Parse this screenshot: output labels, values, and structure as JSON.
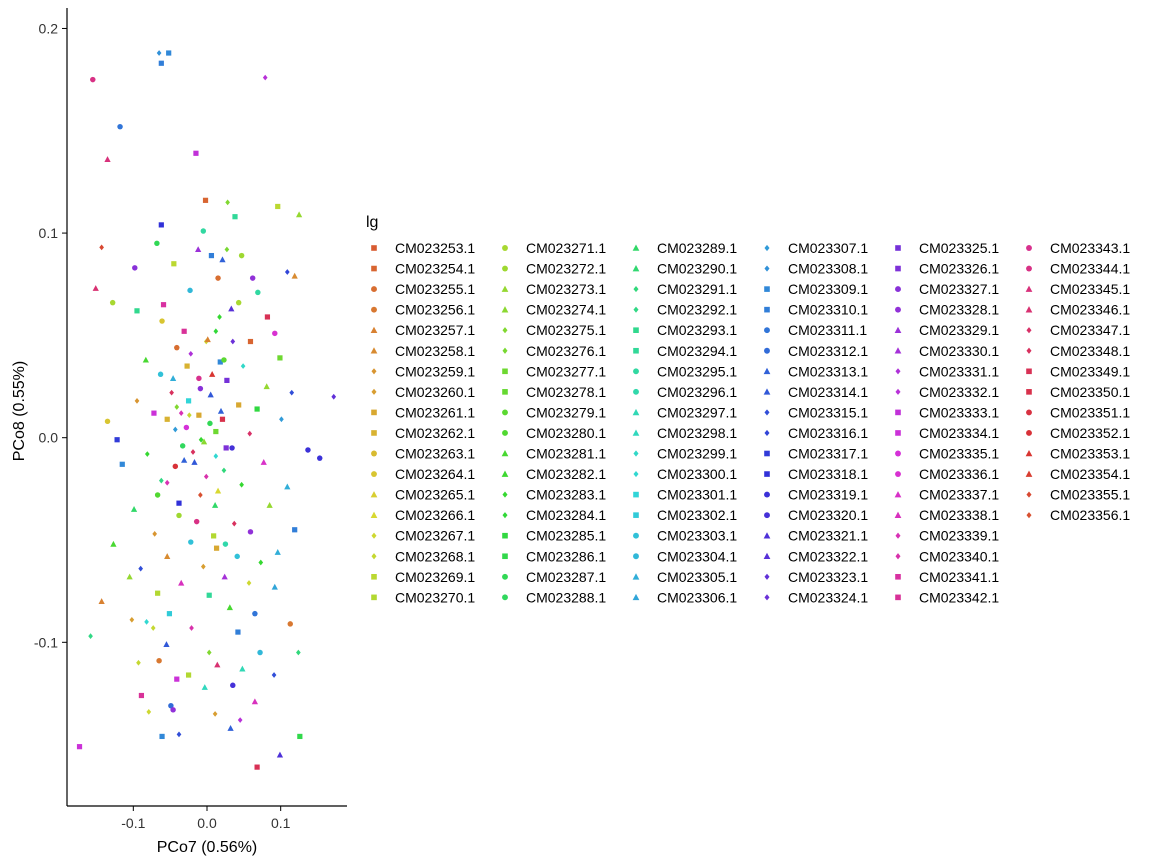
{
  "chart_data": {
    "type": "scatter",
    "title": "",
    "xlabel": "PCo7 (0.56%)",
    "ylabel": "PCo8 (0.55%)",
    "xlim": [
      -0.19,
      0.19
    ],
    "ylim": [
      -0.18,
      0.21
    ],
    "xticks": [
      -0.1,
      0.0,
      0.1
    ],
    "xtick_labels": [
      "-0.1",
      "0.0",
      "0.1"
    ],
    "yticks": [
      -0.1,
      0.0,
      0.1,
      0.2
    ],
    "ytick_labels": [
      "-0.1",
      "0.0",
      "0.1",
      "0.2"
    ],
    "grid": false,
    "legend": {
      "title": "lg",
      "placement": "right",
      "columns": 6,
      "entries": [
        "CM023253.1",
        "CM023254.1",
        "CM023255.1",
        "CM023256.1",
        "CM023257.1",
        "CM023258.1",
        "CM023259.1",
        "CM023260.1",
        "CM023261.1",
        "CM023262.1",
        "CM023263.1",
        "CM023264.1",
        "CM023265.1",
        "CM023266.1",
        "CM023267.1",
        "CM023268.1",
        "CM023269.1",
        "CM023270.1",
        "CM023271.1",
        "CM023272.1",
        "CM023273.1",
        "CM023274.1",
        "CM023275.1",
        "CM023276.1",
        "CM023277.1",
        "CM023278.1",
        "CM023279.1",
        "CM023280.1",
        "CM023281.1",
        "CM023282.1",
        "CM023283.1",
        "CM023284.1",
        "CM023285.1",
        "CM023286.1",
        "CM023287.1",
        "CM023288.1",
        "CM023289.1",
        "CM023290.1",
        "CM023291.1",
        "CM023292.1",
        "CM023293.1",
        "CM023294.1",
        "CM023295.1",
        "CM023296.1",
        "CM023297.1",
        "CM023298.1",
        "CM023299.1",
        "CM023300.1",
        "CM023301.1",
        "CM023302.1",
        "CM023303.1",
        "CM023304.1",
        "CM023305.1",
        "CM023306.1",
        "CM023307.1",
        "CM023308.1",
        "CM023309.1",
        "CM023310.1",
        "CM023311.1",
        "CM023312.1",
        "CM023313.1",
        "CM023314.1",
        "CM023315.1",
        "CM023316.1",
        "CM023317.1",
        "CM023318.1",
        "CM023319.1",
        "CM023320.1",
        "CM023321.1",
        "CM023322.1",
        "CM023323.1",
        "CM023324.1",
        "CM023325.1",
        "CM023326.1",
        "CM023327.1",
        "CM023328.1",
        "CM023329.1",
        "CM023330.1",
        "CM023331.1",
        "CM023332.1",
        "CM023333.1",
        "CM023334.1",
        "CM023335.1",
        "CM023336.1",
        "CM023337.1",
        "CM023338.1",
        "CM023339.1",
        "CM023340.1",
        "CM023341.1",
        "CM023342.1",
        "CM023343.1",
        "CM023344.1",
        "CM023345.1",
        "CM023346.1",
        "CM023347.1",
        "CM023348.1",
        "CM023349.1",
        "CM023350.1",
        "CM023351.1",
        "CM023352.1",
        "CM023353.1",
        "CM023354.1",
        "CM023355.1",
        "CM023356.1"
      ]
    },
    "shapes": [
      "square",
      "circle",
      "triangle",
      "diamond"
    ],
    "series_colors": "hue palette (ggplot2 default), one color per legend entry",
    "points": [
      [
        -0.065,
        0.188,
        55
      ],
      [
        -0.052,
        0.188,
        56
      ],
      [
        -0.062,
        0.183,
        57
      ],
      [
        -0.155,
        0.175,
        91
      ],
      [
        0.079,
        0.176,
        79
      ],
      [
        -0.118,
        0.152,
        58
      ],
      [
        -0.135,
        0.136,
        92
      ],
      [
        -0.015,
        0.139,
        80
      ],
      [
        -0.002,
        0.116,
        1
      ],
      [
        0.028,
        0.115,
        22
      ],
      [
        0.096,
        0.113,
        16
      ],
      [
        0.125,
        0.109,
        20
      ],
      [
        -0.062,
        0.104,
        65
      ],
      [
        -0.068,
        0.095,
        34
      ],
      [
        0.038,
        0.108,
        41
      ],
      [
        -0.143,
        0.093,
        102
      ],
      [
        -0.045,
        0.085,
        16
      ],
      [
        0.006,
        0.089,
        57
      ],
      [
        -0.005,
        0.101,
        42
      ],
      [
        0.027,
        0.092,
        23
      ],
      [
        -0.012,
        0.092,
        76
      ],
      [
        0.021,
        0.087,
        60
      ],
      [
        0.047,
        0.089,
        19
      ],
      [
        -0.098,
        0.083,
        74
      ],
      [
        0.015,
        0.078,
        2
      ],
      [
        0.062,
        0.078,
        75
      ],
      [
        -0.023,
        0.072,
        51
      ],
      [
        0.109,
        0.081,
        63
      ],
      [
        -0.151,
        0.073,
        93
      ],
      [
        -0.059,
        0.065,
        88
      ],
      [
        0.069,
        0.071,
        42
      ],
      [
        0.119,
        0.079,
        5
      ],
      [
        -0.095,
        0.062,
        40
      ],
      [
        -0.128,
        0.066,
        18
      ],
      [
        0.043,
        0.066,
        18
      ],
      [
        0.082,
        0.059,
        96
      ],
      [
        -0.061,
        0.057,
        11
      ],
      [
        -0.031,
        0.052,
        89
      ],
      [
        0.012,
        0.052,
        31
      ],
      [
        -0.001,
        0.047,
        14
      ],
      [
        0.035,
        0.047,
        71
      ],
      [
        -0.041,
        0.044,
        2
      ],
      [
        0.059,
        0.047,
        1
      ],
      [
        0.092,
        0.051,
        83
      ],
      [
        -0.083,
        0.038,
        28
      ],
      [
        -0.027,
        0.035,
        9
      ],
      [
        0.018,
        0.037,
        56
      ],
      [
        0.049,
        0.035,
        46
      ],
      [
        0.099,
        0.039,
        24
      ],
      [
        -0.063,
        0.031,
        50
      ],
      [
        -0.011,
        0.029,
        90
      ],
      [
        0.027,
        0.028,
        72
      ],
      [
        0.081,
        0.025,
        20
      ],
      [
        0.115,
        0.022,
        62
      ],
      [
        -0.048,
        0.022,
        95
      ],
      [
        0.005,
        0.021,
        61
      ],
      [
        -0.095,
        0.018,
        6
      ],
      [
        0.043,
        0.016,
        8
      ],
      [
        0.068,
        0.014,
        32
      ],
      [
        0.172,
        0.02,
        70
      ],
      [
        -0.072,
        0.012,
        81
      ],
      [
        -0.024,
        0.011,
        15
      ],
      [
        0.021,
        0.009,
        97
      ],
      [
        0.101,
        0.009,
        54
      ],
      [
        -0.135,
        0.008,
        11
      ],
      [
        -0.043,
        0.004,
        54
      ],
      [
        0.012,
        0.003,
        24
      ],
      [
        0.058,
        0.002,
        94
      ],
      [
        -0.008,
        -0.001,
        30
      ],
      [
        0.034,
        -0.005,
        67
      ],
      [
        -0.122,
        -0.001,
        64
      ],
      [
        0.137,
        -0.006,
        66
      ],
      [
        0.153,
        -0.01,
        66
      ],
      [
        -0.081,
        -0.008,
        30
      ],
      [
        -0.031,
        -0.011,
        60
      ],
      [
        0.077,
        -0.012,
        84
      ],
      [
        -0.115,
        -0.013,
        56
      ],
      [
        0.023,
        -0.016,
        38
      ],
      [
        -0.054,
        -0.022,
        86
      ],
      [
        0.047,
        -0.023,
        30
      ],
      [
        0.109,
        -0.024,
        52
      ],
      [
        -0.067,
        -0.028,
        27
      ],
      [
        -0.009,
        -0.028,
        103
      ],
      [
        0.011,
        -0.033,
        36
      ],
      [
        -0.099,
        -0.035,
        36
      ],
      [
        0.085,
        -0.033,
        20
      ],
      [
        -0.038,
        -0.038,
        19
      ],
      [
        0.037,
        -0.042,
        95
      ],
      [
        -0.071,
        -0.047,
        6
      ],
      [
        0.059,
        -0.046,
        75
      ],
      [
        0.119,
        -0.045,
        57
      ],
      [
        -0.022,
        -0.051,
        50
      ],
      [
        0.013,
        -0.054,
        8
      ],
      [
        -0.127,
        -0.052,
        28
      ],
      [
        0.096,
        -0.056,
        52
      ],
      [
        -0.054,
        -0.058,
        5
      ],
      [
        0.041,
        -0.058,
        50
      ],
      [
        0.073,
        -0.061,
        30
      ],
      [
        -0.09,
        -0.064,
        62
      ],
      [
        -0.005,
        -0.063,
        7
      ],
      [
        0.024,
        -0.068,
        77
      ],
      [
        -0.105,
        -0.068,
        20
      ],
      [
        -0.035,
        -0.071,
        85
      ],
      [
        0.057,
        -0.071,
        14
      ],
      [
        0.092,
        -0.073,
        53
      ],
      [
        -0.067,
        -0.076,
        17
      ],
      [
        0.003,
        -0.077,
        41
      ],
      [
        -0.143,
        -0.08,
        4
      ],
      [
        0.031,
        -0.083,
        28
      ],
      [
        -0.051,
        -0.086,
        49
      ],
      [
        0.065,
        -0.086,
        58
      ],
      [
        -0.102,
        -0.089,
        7
      ],
      [
        -0.082,
        -0.09,
        47
      ],
      [
        -0.021,
        -0.093,
        87
      ],
      [
        0.042,
        -0.095,
        57
      ],
      [
        0.113,
        -0.091,
        3
      ],
      [
        -0.073,
        -0.093,
        15
      ],
      [
        -0.158,
        -0.097,
        39
      ],
      [
        -0.055,
        -0.101,
        61
      ],
      [
        0.003,
        -0.105,
        22
      ],
      [
        0.072,
        -0.105,
        51
      ],
      [
        0.124,
        -0.105,
        38
      ],
      [
        -0.065,
        -0.109,
        3
      ],
      [
        -0.093,
        -0.11,
        15
      ],
      [
        0.014,
        -0.111,
        93
      ],
      [
        -0.025,
        -0.116,
        17
      ],
      [
        0.048,
        -0.113,
        44
      ],
      [
        0.091,
        -0.116,
        62
      ],
      [
        -0.041,
        -0.118,
        81
      ],
      [
        -0.003,
        -0.122,
        45
      ],
      [
        0.035,
        -0.121,
        67
      ],
      [
        -0.089,
        -0.126,
        89
      ],
      [
        0.065,
        -0.129,
        85
      ],
      [
        -0.049,
        -0.131,
        59
      ],
      [
        -0.046,
        -0.133,
        75
      ],
      [
        -0.079,
        -0.134,
        14
      ],
      [
        0.011,
        -0.135,
        7
      ],
      [
        0.045,
        -0.138,
        79
      ],
      [
        -0.038,
        -0.145,
        62
      ],
      [
        -0.061,
        -0.146,
        56
      ],
      [
        0.032,
        -0.142,
        60
      ],
      [
        0.126,
        -0.146,
        33
      ],
      [
        -0.173,
        -0.151,
        81
      ],
      [
        0.099,
        -0.155,
        68
      ],
      [
        0.068,
        -0.161,
        96
      ],
      [
        -0.054,
        0.009,
        9
      ],
      [
        -0.041,
        0.015,
        22
      ],
      [
        -0.033,
        -0.004,
        35
      ],
      [
        -0.025,
        0.018,
        48
      ],
      [
        -0.017,
        -0.012,
        61
      ],
      [
        -0.009,
        0.024,
        74
      ],
      [
        -0.001,
        -0.019,
        87
      ],
      [
        0.007,
        0.031,
        100
      ],
      [
        0.015,
        -0.026,
        13
      ],
      [
        0.023,
        0.038,
        26
      ],
      [
        -0.062,
        -0.021,
        39
      ],
      [
        -0.046,
        0.029,
        52
      ],
      [
        -0.038,
        -0.032,
        65
      ],
      [
        -0.022,
        0.041,
        78
      ],
      [
        -0.014,
        -0.041,
        91
      ],
      [
        0.001,
        0.048,
        4
      ],
      [
        0.009,
        -0.048,
        17
      ],
      [
        0.017,
        0.059,
        30
      ],
      [
        0.025,
        -0.052,
        43
      ],
      [
        0.033,
        0.063,
        69
      ],
      [
        -0.028,
        0.005,
        82
      ],
      [
        -0.019,
        -0.007,
        95
      ],
      [
        -0.011,
        0.011,
        8
      ],
      [
        -0.004,
        -0.002,
        21
      ],
      [
        0.004,
        0.007,
        34
      ],
      [
        0.012,
        -0.009,
        47
      ],
      [
        0.019,
        0.013,
        60
      ],
      [
        0.026,
        -0.005,
        73
      ],
      [
        -0.035,
        0.012,
        86
      ],
      [
        -0.043,
        -0.014,
        99
      ]
    ]
  }
}
